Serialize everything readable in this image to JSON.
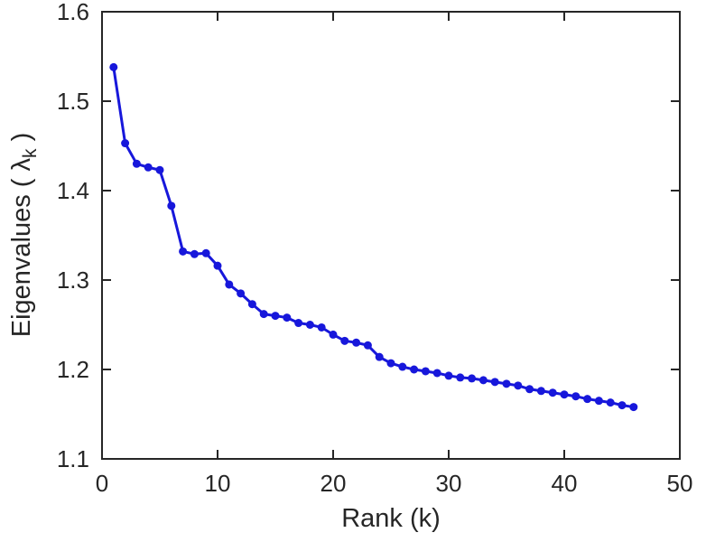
{
  "chart_data": {
    "type": "line",
    "title": "",
    "xlabel": "Rank (k)",
    "ylabel": "Eigenvalues ( λk )",
    "ylabel_parts": {
      "prefix": "Eigenvalues ( λ",
      "sub": "k",
      "suffix": " )"
    },
    "xlim": [
      0,
      50
    ],
    "ylim": [
      1.1,
      1.6
    ],
    "xticks": [
      0,
      10,
      20,
      30,
      40,
      50
    ],
    "yticks": [
      1.1,
      1.2,
      1.3,
      1.4,
      1.5,
      1.6
    ],
    "grid": false,
    "legend": "none",
    "line_color": "#1717db",
    "axis_color": "#262626",
    "marker": "circle",
    "x": [
      1,
      2,
      3,
      4,
      5,
      6,
      7,
      8,
      9,
      10,
      11,
      12,
      13,
      14,
      15,
      16,
      17,
      18,
      19,
      20,
      21,
      22,
      23,
      24,
      25,
      26,
      27,
      28,
      29,
      30,
      31,
      32,
      33,
      34,
      35,
      36,
      37,
      38,
      39,
      40,
      41,
      42,
      43,
      44,
      45,
      46
    ],
    "y": [
      1.538,
      1.453,
      1.43,
      1.426,
      1.423,
      1.383,
      1.332,
      1.329,
      1.33,
      1.316,
      1.295,
      1.285,
      1.273,
      1.262,
      1.26,
      1.258,
      1.252,
      1.25,
      1.247,
      1.239,
      1.232,
      1.23,
      1.227,
      1.214,
      1.207,
      1.203,
      1.2,
      1.198,
      1.196,
      1.193,
      1.191,
      1.19,
      1.188,
      1.186,
      1.184,
      1.182,
      1.178,
      1.176,
      1.174,
      1.172,
      1.17,
      1.167,
      1.165,
      1.163,
      1.16,
      1.158
    ]
  }
}
